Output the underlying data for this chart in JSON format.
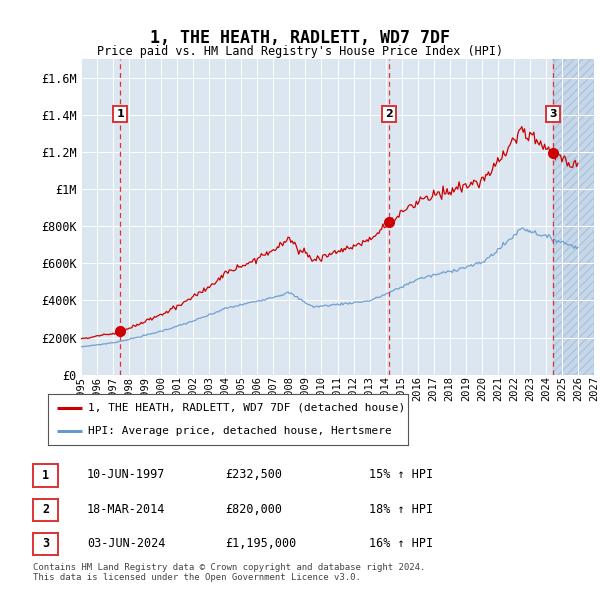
{
  "title": "1, THE HEATH, RADLETT, WD7 7DF",
  "subtitle": "Price paid vs. HM Land Registry's House Price Index (HPI)",
  "legend_label_red": "1, THE HEATH, RADLETT, WD7 7DF (detached house)",
  "legend_label_blue": "HPI: Average price, detached house, Hertsmere",
  "transactions": [
    {
      "num": 1,
      "date": "10-JUN-1997",
      "price": 232500,
      "year": 1997.44,
      "hpi_pct": "15% ↑ HPI"
    },
    {
      "num": 2,
      "date": "18-MAR-2014",
      "price": 820000,
      "year": 2014.21,
      "hpi_pct": "18% ↑ HPI"
    },
    {
      "num": 3,
      "date": "03-JUN-2024",
      "price": 1195000,
      "year": 2024.42,
      "hpi_pct": "16% ↑ HPI"
    }
  ],
  "xmin": 1995,
  "xmax": 2027,
  "ymin": 0,
  "ymax": 1700000,
  "yticks": [
    0,
    200000,
    400000,
    600000,
    800000,
    1000000,
    1200000,
    1400000,
    1600000
  ],
  "ytick_labels": [
    "£0",
    "£200K",
    "£400K",
    "£600K",
    "£800K",
    "£1M",
    "£1.2M",
    "£1.4M",
    "£1.6M"
  ],
  "xticks": [
    1995,
    1996,
    1997,
    1998,
    1999,
    2000,
    2001,
    2002,
    2003,
    2004,
    2005,
    2006,
    2007,
    2008,
    2009,
    2010,
    2011,
    2012,
    2013,
    2014,
    2015,
    2016,
    2017,
    2018,
    2019,
    2020,
    2021,
    2022,
    2023,
    2024,
    2025,
    2026,
    2027
  ],
  "background_color": "#dce6f1",
  "hatch_color": "#c5d8eb",
  "red_color": "#cc0000",
  "blue_color": "#6699cc",
  "dashed_red": "#dd3333",
  "footer": "Contains HM Land Registry data © Crown copyright and database right 2024.\nThis data is licensed under the Open Government Licence v3.0."
}
